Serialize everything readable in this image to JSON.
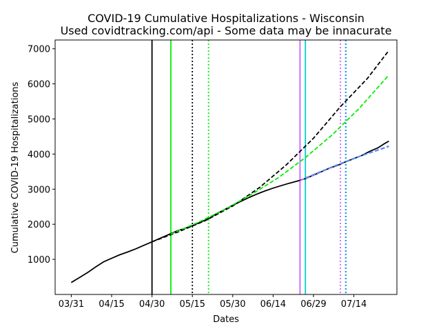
{
  "chart_data": {
    "type": "line",
    "title": "COVID-19 Cumulative Hospitalizations - Wisconsin",
    "subtitle": "Used covidtracking.com/api - Some data may be innacurate",
    "xlabel": "Dates",
    "ylabel": "Cumulative COVID-19 Hospitalizations",
    "x_ticks": [
      "03/31",
      "04/15",
      "04/30",
      "05/15",
      "05/30",
      "06/14",
      "06/29",
      "07/14"
    ],
    "y_ticks": [
      1000,
      2000,
      3000,
      4000,
      5000,
      6000,
      7000
    ],
    "xlim": [
      "2020-03-25",
      "2020-07-30"
    ],
    "ylim": [
      0,
      7250
    ],
    "grid": false,
    "vertical_lines": [
      {
        "x": "2020-04-30",
        "color": "#000000",
        "style": "solid"
      },
      {
        "x": "2020-05-07",
        "color": "#00ee00",
        "style": "solid"
      },
      {
        "x": "2020-05-15",
        "color": "#000000",
        "style": "dotted"
      },
      {
        "x": "2020-05-21",
        "color": "#00ee00",
        "style": "dotted"
      },
      {
        "x": "2020-06-24",
        "color": "#cc66ff",
        "style": "solid"
      },
      {
        "x": "2020-06-26",
        "color": "#00cccc",
        "style": "solid"
      },
      {
        "x": "2020-07-09",
        "color": "#cc66ff",
        "style": "dotted"
      },
      {
        "x": "2020-07-11",
        "color": "#000000",
        "style": "dotted"
      },
      {
        "x": "2020-07-11",
        "color": "#0099ff",
        "style": "dotted"
      }
    ],
    "series": [
      {
        "style": "solid",
        "color": "#000000",
        "points": [
          [
            "2020-03-31",
            340
          ],
          [
            "2020-04-03",
            480
          ],
          [
            "2020-04-06",
            620
          ],
          [
            "2020-04-09",
            780
          ],
          [
            "2020-04-12",
            930
          ],
          [
            "2020-04-15",
            1030
          ],
          [
            "2020-04-18",
            1130
          ],
          [
            "2020-04-21",
            1210
          ],
          [
            "2020-04-24",
            1300
          ],
          [
            "2020-04-27",
            1400
          ],
          [
            "2020-04-30",
            1500
          ],
          [
            "2020-05-03",
            1600
          ],
          [
            "2020-05-06",
            1700
          ],
          [
            "2020-05-09",
            1800
          ],
          [
            "2020-05-12",
            1880
          ],
          [
            "2020-05-15",
            1960
          ],
          [
            "2020-05-18",
            2060
          ],
          [
            "2020-05-21",
            2160
          ],
          [
            "2020-05-24",
            2300
          ],
          [
            "2020-05-27",
            2420
          ],
          [
            "2020-05-30",
            2540
          ],
          [
            "2020-06-02",
            2650
          ],
          [
            "2020-06-05",
            2760
          ],
          [
            "2020-06-08",
            2860
          ],
          [
            "2020-06-11",
            2950
          ],
          [
            "2020-06-14",
            3030
          ],
          [
            "2020-06-17",
            3100
          ],
          [
            "2020-06-20",
            3170
          ],
          [
            "2020-06-23",
            3230
          ],
          [
            "2020-06-26",
            3300
          ],
          [
            "2020-06-29",
            3400
          ],
          [
            "2020-07-02",
            3500
          ],
          [
            "2020-07-05",
            3600
          ],
          [
            "2020-07-08",
            3680
          ],
          [
            "2020-07-11",
            3780
          ],
          [
            "2020-07-14",
            3870
          ],
          [
            "2020-07-17",
            3960
          ],
          [
            "2020-07-20",
            4080
          ],
          [
            "2020-07-23",
            4180
          ],
          [
            "2020-07-25",
            4280
          ],
          [
            "2020-07-27",
            4370
          ]
        ]
      },
      {
        "style": "dashed",
        "color": "#000000",
        "points": [
          [
            "2020-04-30",
            1500
          ],
          [
            "2020-05-10",
            1790
          ],
          [
            "2020-05-20",
            2110
          ],
          [
            "2020-05-30",
            2520
          ],
          [
            "2020-06-09",
            3050
          ],
          [
            "2020-06-19",
            3700
          ],
          [
            "2020-06-29",
            4450
          ],
          [
            "2020-07-09",
            5350
          ],
          [
            "2020-07-19",
            6150
          ],
          [
            "2020-07-27",
            6950
          ]
        ]
      },
      {
        "style": "dashed",
        "color": "#00ee00",
        "points": [
          [
            "2020-05-07",
            1720
          ],
          [
            "2020-05-17",
            2050
          ],
          [
            "2020-05-27",
            2420
          ],
          [
            "2020-06-06",
            2850
          ],
          [
            "2020-06-16",
            3330
          ],
          [
            "2020-06-26",
            3900
          ],
          [
            "2020-07-06",
            4550
          ],
          [
            "2020-07-16",
            5300
          ],
          [
            "2020-07-27",
            6250
          ]
        ]
      },
      {
        "style": "dashed",
        "color": "#cc66ff",
        "points": [
          [
            "2020-06-24",
            3240
          ],
          [
            "2020-07-04",
            3570
          ],
          [
            "2020-07-14",
            3880
          ],
          [
            "2020-07-27",
            4210
          ]
        ]
      },
      {
        "style": "dashed",
        "color": "#4499ff",
        "points": [
          [
            "2020-06-26",
            3320
          ],
          [
            "2020-07-06",
            3640
          ],
          [
            "2020-07-16",
            3930
          ],
          [
            "2020-07-27",
            4230
          ]
        ]
      }
    ]
  }
}
